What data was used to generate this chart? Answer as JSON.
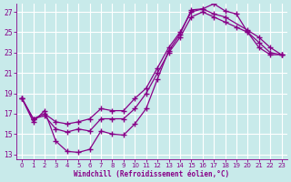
{
  "xlabel": "Windchill (Refroidissement éolien,°C)",
  "bg_color": "#c8eaea",
  "grid_color": "#ffffff",
  "line_color": "#880088",
  "xlim_min": -0.5,
  "xlim_max": 23.5,
  "ylim_min": 12.5,
  "ylim_max": 27.8,
  "xticks": [
    0,
    1,
    2,
    3,
    4,
    5,
    6,
    7,
    8,
    9,
    10,
    11,
    12,
    13,
    14,
    15,
    16,
    17,
    18,
    19,
    20,
    21,
    22,
    23
  ],
  "yticks": [
    13,
    15,
    17,
    19,
    21,
    23,
    25,
    27
  ],
  "line1_x": [
    0,
    1,
    2,
    3,
    4,
    5,
    6,
    7,
    8,
    9,
    10,
    11,
    12,
    13,
    14,
    15,
    16,
    17,
    18,
    19,
    20,
    21,
    22,
    23
  ],
  "line1_y": [
    18.5,
    16.2,
    17.3,
    14.3,
    13.3,
    13.2,
    13.5,
    15.3,
    15.0,
    14.9,
    16.0,
    17.5,
    20.4,
    23.2,
    24.8,
    27.2,
    27.3,
    27.8,
    27.1,
    26.8,
    25.0,
    23.5,
    22.8,
    22.8
  ],
  "line2_x": [
    0,
    1,
    2,
    3,
    4,
    5,
    6,
    7,
    8,
    9,
    10,
    11,
    12,
    13,
    14,
    15,
    16,
    17,
    18,
    20,
    21,
    22,
    23
  ],
  "line2_y": [
    18.5,
    16.5,
    17.0,
    16.2,
    16.0,
    16.2,
    16.5,
    17.5,
    17.3,
    17.3,
    18.5,
    19.5,
    21.5,
    23.5,
    25.0,
    27.0,
    27.3,
    26.8,
    26.5,
    25.2,
    24.5,
    23.5,
    22.8
  ],
  "line3_x": [
    0,
    1,
    2,
    3,
    4,
    5,
    6,
    7,
    8,
    9,
    10,
    11,
    12,
    13,
    14,
    15,
    16,
    17,
    18,
    19,
    20,
    21,
    22,
    23
  ],
  "line3_y": [
    18.5,
    16.5,
    16.8,
    15.5,
    15.2,
    15.5,
    15.3,
    16.5,
    16.5,
    16.5,
    17.5,
    19.0,
    21.0,
    23.0,
    24.5,
    26.5,
    27.0,
    26.5,
    26.0,
    25.5,
    25.0,
    24.0,
    23.0,
    22.8
  ]
}
